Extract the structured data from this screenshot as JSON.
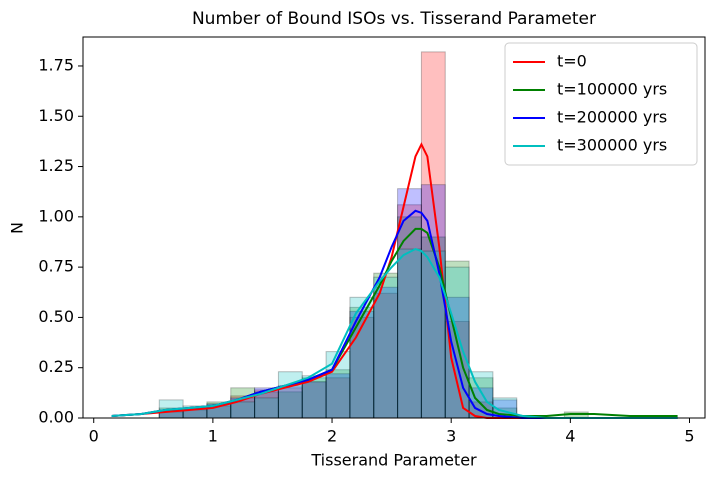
{
  "chart_data": {
    "type": "histogram",
    "title": "Number of Bound ISOs vs. Tisserand Parameter",
    "xlabel": "Tisserand Parameter",
    "ylabel": "N",
    "xlim": [
      -0.09,
      5.13
    ],
    "ylim": [
      0,
      1.894
    ],
    "xticks": [
      0,
      1,
      2,
      3,
      4,
      5
    ],
    "yticks": [
      {
        "value": 0,
        "label": "0.00"
      },
      {
        "value": 0.25,
        "label": "0.25"
      },
      {
        "value": 0.5,
        "label": "0.50"
      },
      {
        "value": 0.75,
        "label": "0.75"
      },
      {
        "value": 1,
        "label": "1.00"
      },
      {
        "value": 1.25,
        "label": "1.25"
      },
      {
        "value": 1.5,
        "label": "1.50"
      },
      {
        "value": 1.75,
        "label": "1.75"
      }
    ],
    "legend": "upper right",
    "bins": [
      0.55,
      0.75,
      0.95,
      1.15,
      1.35,
      1.55,
      1.75,
      1.95,
      2.15,
      2.35,
      2.55,
      2.75,
      2.95,
      3.15,
      3.35,
      3.55,
      3.75,
      3.95,
      4.15
    ],
    "x": [
      0.15,
      0.4,
      0.6,
      0.8,
      1.0,
      1.2,
      1.4,
      1.6,
      1.8,
      2.0,
      2.2,
      2.4,
      2.5,
      2.6,
      2.7,
      2.75,
      2.8,
      2.9,
      3.0,
      3.1,
      3.2,
      3.3,
      3.4,
      3.6,
      3.8,
      4.0,
      4.2,
      4.5,
      4.9
    ],
    "series": [
      {
        "name": "t=0",
        "color": "#ff0000",
        "hist": [
          0.03,
          0.04,
          0.06,
          0.11,
          0.14,
          0.15,
          0.18,
          0.2,
          0.5,
          0.62,
          1.06,
          1.82,
          0.48,
          0.08,
          0,
          0,
          0,
          0
        ],
        "values": [
          0.01,
          0.02,
          0.03,
          0.04,
          0.05,
          0.08,
          0.12,
          0.15,
          0.18,
          0.23,
          0.4,
          0.62,
          0.8,
          1.05,
          1.3,
          1.36,
          1.3,
          0.85,
          0.3,
          0.05,
          0.01,
          0,
          0,
          0,
          0,
          0,
          0,
          0,
          0
        ]
      },
      {
        "name": "t=100000 yrs",
        "color": "#008000",
        "hist": [
          0.05,
          0.05,
          0.08,
          0.15,
          0.13,
          0.13,
          0.2,
          0.24,
          0.55,
          0.72,
          1.0,
          0.9,
          0.78,
          0.2,
          0.05,
          0,
          0,
          0.03
        ],
        "values": [
          0.01,
          0.02,
          0.04,
          0.05,
          0.06,
          0.09,
          0.13,
          0.16,
          0.19,
          0.24,
          0.45,
          0.66,
          0.78,
          0.88,
          0.94,
          0.94,
          0.92,
          0.75,
          0.5,
          0.25,
          0.1,
          0.04,
          0.02,
          0.01,
          0.01,
          0.02,
          0.02,
          0.01,
          0.01
        ]
      },
      {
        "name": "t=200000 yrs",
        "color": "#0000ff",
        "hist": [
          0.04,
          0.05,
          0.07,
          0.1,
          0.15,
          0.16,
          0.18,
          0.22,
          0.53,
          0.65,
          1.14,
          1.16,
          0.6,
          0.15,
          0.09,
          0,
          0,
          0
        ],
        "values": [
          0.01,
          0.02,
          0.04,
          0.05,
          0.06,
          0.09,
          0.13,
          0.16,
          0.19,
          0.24,
          0.48,
          0.7,
          0.85,
          0.98,
          1.03,
          1.02,
          0.98,
          0.72,
          0.38,
          0.15,
          0.05,
          0.02,
          0.01,
          0,
          0,
          0,
          0,
          0,
          0
        ]
      },
      {
        "name": "t=300000 yrs",
        "color": "#00bfbf",
        "hist": [
          0.09,
          0.06,
          0.07,
          0.08,
          0.1,
          0.23,
          0.21,
          0.33,
          0.6,
          0.7,
          0.84,
          0.83,
          0.75,
          0.23,
          0.1,
          0,
          0,
          0
        ],
        "values": [
          0.01,
          0.02,
          0.04,
          0.05,
          0.06,
          0.09,
          0.12,
          0.16,
          0.2,
          0.27,
          0.52,
          0.68,
          0.75,
          0.81,
          0.84,
          0.83,
          0.8,
          0.7,
          0.52,
          0.33,
          0.18,
          0.08,
          0.04,
          0.01,
          0,
          0,
          0,
          0,
          0
        ]
      }
    ]
  }
}
